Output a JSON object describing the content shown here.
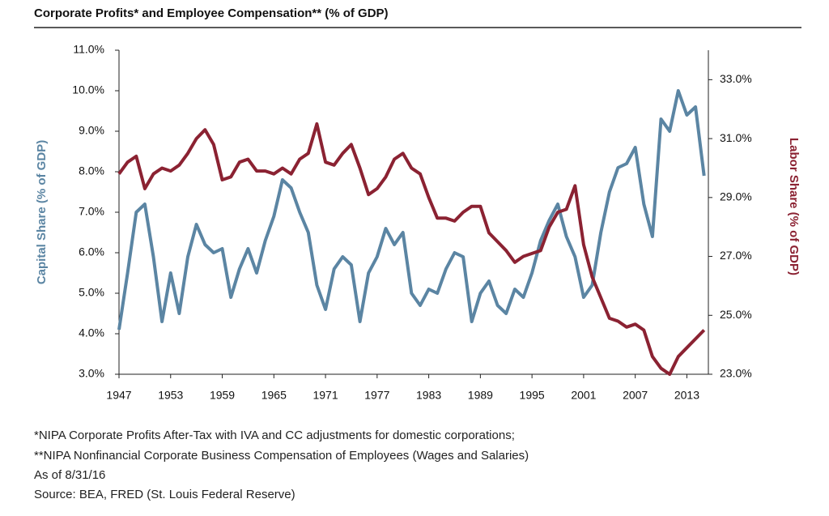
{
  "chart_data": {
    "type": "line",
    "title": "Corporate Profits* and Employee Compensation** (% of GDP)",
    "y_label": "Capital Share (% of GDP)",
    "y2_label": "Labor Share (% of GDP)",
    "notes": [
      "*NIPA Corporate Profits After-Tax with IVA and CC adjustments for domestic corporations;",
      "**NIPA Nonfinancial Corporate Business Compensation of Employees (Wages and Salaries)",
      "As of 8/31/16",
      "Source: BEA, FRED (St. Louis Federal Reserve)"
    ],
    "xlim": [
      1947,
      2015.5
    ],
    "xticks": [
      1947,
      1953,
      1959,
      1965,
      1971,
      1977,
      1983,
      1989,
      1995,
      2001,
      2007,
      2013
    ],
    "ylim": [
      3,
      11
    ],
    "yticks": [
      {
        "value": 3,
        "label": "3.0%"
      },
      {
        "value": 4,
        "label": "4.0%"
      },
      {
        "value": 5,
        "label": "5.0%"
      },
      {
        "value": 6,
        "label": "6.0%"
      },
      {
        "value": 7,
        "label": "7.0%"
      },
      {
        "value": 8,
        "label": "8.0%"
      },
      {
        "value": 9,
        "label": "9.0%"
      },
      {
        "value": 10,
        "label": "10.0%"
      },
      {
        "value": 11,
        "label": "11.0%"
      }
    ],
    "y2lim": [
      23,
      34
    ],
    "y2ticks": [
      {
        "value": 23,
        "label": "23.0%"
      },
      {
        "value": 25,
        "label": "25.0%"
      },
      {
        "value": 27,
        "label": "27.0%"
      },
      {
        "value": 29,
        "label": "29.0%"
      },
      {
        "value": 31,
        "label": "31.0%"
      },
      {
        "value": 33,
        "label": "33.0%"
      }
    ],
    "x": [
      1947,
      1948,
      1949,
      1950,
      1951,
      1952,
      1953,
      1954,
      1955,
      1956,
      1957,
      1958,
      1959,
      1960,
      1961,
      1962,
      1963,
      1964,
      1965,
      1966,
      1967,
      1968,
      1969,
      1970,
      1971,
      1972,
      1973,
      1974,
      1975,
      1976,
      1977,
      1978,
      1979,
      1980,
      1981,
      1982,
      1983,
      1984,
      1985,
      1986,
      1987,
      1988,
      1989,
      1990,
      1991,
      1992,
      1993,
      1994,
      1995,
      1996,
      1997,
      1998,
      1999,
      2000,
      2001,
      2002,
      2003,
      2004,
      2005,
      2006,
      2007,
      2008,
      2009,
      2010,
      2011,
      2012,
      2013,
      2014,
      2015
    ],
    "series": [
      {
        "name": "Capital Share",
        "color": "#5b85a3",
        "axis": "y",
        "values": [
          4.1,
          5.5,
          7.0,
          7.2,
          5.9,
          4.3,
          5.5,
          4.5,
          5.9,
          6.7,
          6.2,
          6.0,
          6.1,
          4.9,
          5.6,
          6.1,
          5.5,
          6.3,
          6.9,
          7.8,
          7.6,
          7.0,
          6.5,
          5.2,
          4.6,
          5.6,
          5.9,
          5.7,
          4.3,
          5.5,
          5.9,
          6.6,
          6.2,
          6.5,
          5.0,
          4.7,
          5.1,
          5.0,
          5.6,
          6.0,
          5.9,
          4.3,
          5.0,
          5.3,
          4.7,
          4.5,
          5.1,
          4.9,
          5.5,
          6.3,
          6.8,
          7.2,
          6.4,
          5.9,
          4.9,
          5.2,
          6.5,
          7.5,
          8.1,
          8.2,
          8.6,
          7.2,
          6.4,
          9.3,
          9.0,
          10.0,
          9.4,
          9.6,
          7.9
        ]
      },
      {
        "name": "Labor Share",
        "color": "#8b2232",
        "axis": "y2",
        "values": [
          29.8,
          30.2,
          30.4,
          29.3,
          29.8,
          30.0,
          29.9,
          30.1,
          30.5,
          31.0,
          31.3,
          30.8,
          29.6,
          29.7,
          30.2,
          30.3,
          29.9,
          29.9,
          29.8,
          30.0,
          29.8,
          30.3,
          30.5,
          31.5,
          30.2,
          30.1,
          30.5,
          30.8,
          30.0,
          29.1,
          29.3,
          29.7,
          30.3,
          30.5,
          30.0,
          29.8,
          29.0,
          28.3,
          28.3,
          28.2,
          28.5,
          28.7,
          28.7,
          27.8,
          27.5,
          27.2,
          26.8,
          27.0,
          27.1,
          27.2,
          28.0,
          28.5,
          28.6,
          29.4,
          27.4,
          26.3,
          25.6,
          24.9,
          24.8,
          24.6,
          24.7,
          24.5,
          23.6,
          23.2,
          23.0,
          23.6,
          23.9,
          24.2,
          24.5
        ]
      }
    ]
  }
}
